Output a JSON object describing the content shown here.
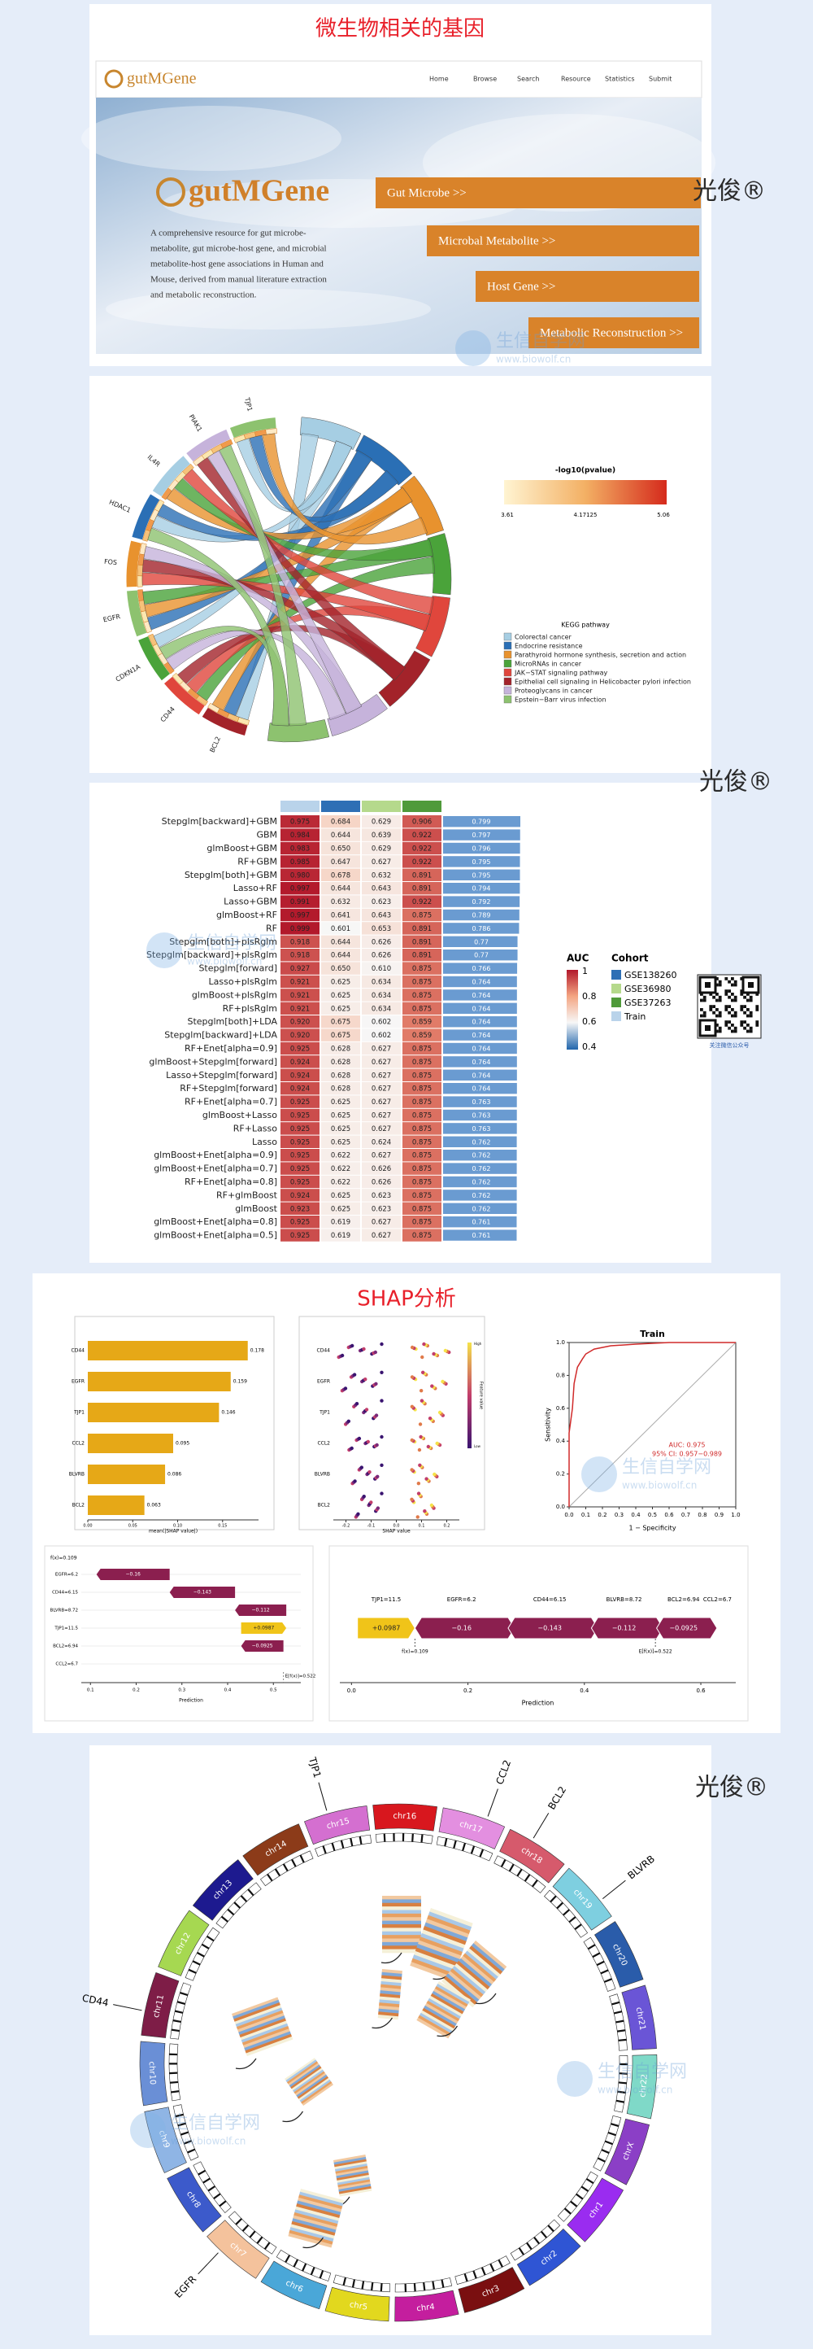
{
  "watermark": "光俊®",
  "site_watermark": {
    "name": "生信自学网",
    "url": "www.biowolf.cn"
  },
  "gutmgene": {
    "title": "微生物相关的基因",
    "logo": "gutMGene",
    "nav": [
      "Home",
      "Browse",
      "Search",
      "Resource",
      "Statistics",
      "Submit"
    ],
    "brand": "gutMGene",
    "description": [
      "A comprehensive resource for gut microbe-",
      "metabolite, gut microbe-host gene, and microbial",
      "metabolite-host gene associations in Human and",
      "Mouse, derived from manual literature extraction",
      "and metabolic reconstruction."
    ],
    "buttons": [
      "Gut Microbe >>",
      "Microbal Metabolite >>",
      "Host Gene >>",
      "Metabolic Reconstruction >>"
    ]
  },
  "chord": {
    "genes": [
      "BCL2",
      "CD44",
      "CDKN1A",
      "EGFR",
      "FOS",
      "HDAC1",
      "IL4R",
      "PIAK1",
      "TJP1"
    ],
    "colorbar": {
      "title": "-log10(pvalue)",
      "ticks": [
        "3.61",
        "4.17125",
        "5.06"
      ]
    },
    "kegg": {
      "title": "KEGG pathway",
      "items": [
        {
          "name": "Colorectal cancer",
          "color": "#a6cee3"
        },
        {
          "name": "Endocrine resistance",
          "color": "#2a6fb5"
        },
        {
          "name": "Parathyroid hormone synthesis, secretion and action",
          "color": "#e8922e"
        },
        {
          "name": "MicroRNAs in cancer",
          "color": "#4aa33a"
        },
        {
          "name": "JAK−STAT signaling pathway",
          "color": "#e0463c"
        },
        {
          "name": "Epithelial cell signaling in Helicobacter pylori infection",
          "color": "#a3232a"
        },
        {
          "name": "Proteoglycans in cancer",
          "color": "#c6b3db"
        },
        {
          "name": "Epstein−Barr virus infection",
          "color": "#8dc26f"
        }
      ]
    }
  },
  "heatmap": {
    "column_colors": [
      "#b9d3ea",
      "#2e6fb5",
      "#b5d98c",
      "#4f9a3a"
    ],
    "models": [
      "Stepglm[backward]+GBM",
      "GBM",
      "glmBoost+GBM",
      "RF+GBM",
      "Stepglm[both]+GBM",
      "Lasso+RF",
      "Lasso+GBM",
      "glmBoost+RF",
      "RF",
      "Stepglm[both]+plsRglm",
      "Stepglm[backward]+plsRglm",
      "Stepglm[forward]",
      "Lasso+plsRglm",
      "glmBoost+plsRglm",
      "RF+plsRglm",
      "Stepglm[both]+LDA",
      "Stepglm[backward]+LDA",
      "RF+Enet[alpha=0.9]",
      "glmBoost+Stepglm[forward]",
      "Lasso+Stepglm[forward]",
      "RF+Stepglm[forward]",
      "RF+Enet[alpha=0.7]",
      "glmBoost+Lasso",
      "RF+Lasso",
      "Lasso",
      "glmBoost+Enet[alpha=0.9]",
      "glmBoost+Enet[alpha=0.7]",
      "RF+Enet[alpha=0.8]",
      "RF+glmBoost",
      "glmBoost",
      "glmBoost+Enet[alpha=0.8]",
      "glmBoost+Enet[alpha=0.5]"
    ],
    "values": [
      [
        "0.975",
        "0.684",
        "0.629",
        "0.906"
      ],
      [
        "0.984",
        "0.644",
        "0.639",
        "0.922"
      ],
      [
        "0.983",
        "0.650",
        "0.629",
        "0.922"
      ],
      [
        "0.985",
        "0.647",
        "0.627",
        "0.922"
      ],
      [
        "0.980",
        "0.678",
        "0.632",
        "0.891"
      ],
      [
        "0.997",
        "0.644",
        "0.643",
        "0.891"
      ],
      [
        "0.991",
        "0.632",
        "0.623",
        "0.922"
      ],
      [
        "0.997",
        "0.641",
        "0.643",
        "0.875"
      ],
      [
        "0.999",
        "0.601",
        "0.653",
        "0.891"
      ],
      [
        "0.918",
        "0.644",
        "0.626",
        "0.891"
      ],
      [
        "0.918",
        "0.644",
        "0.626",
        "0.891"
      ],
      [
        "0.927",
        "0.650",
        "0.610",
        "0.875"
      ],
      [
        "0.921",
        "0.625",
        "0.634",
        "0.875"
      ],
      [
        "0.921",
        "0.625",
        "0.634",
        "0.875"
      ],
      [
        "0.921",
        "0.625",
        "0.634",
        "0.875"
      ],
      [
        "0.920",
        "0.675",
        "0.602",
        "0.859"
      ],
      [
        "0.920",
        "0.675",
        "0.602",
        "0.859"
      ],
      [
        "0.925",
        "0.628",
        "0.627",
        "0.875"
      ],
      [
        "0.924",
        "0.628",
        "0.627",
        "0.875"
      ],
      [
        "0.924",
        "0.628",
        "0.627",
        "0.875"
      ],
      [
        "0.924",
        "0.628",
        "0.627",
        "0.875"
      ],
      [
        "0.925",
        "0.625",
        "0.627",
        "0.875"
      ],
      [
        "0.925",
        "0.625",
        "0.627",
        "0.875"
      ],
      [
        "0.925",
        "0.625",
        "0.627",
        "0.875"
      ],
      [
        "0.925",
        "0.625",
        "0.624",
        "0.875"
      ],
      [
        "0.925",
        "0.622",
        "0.627",
        "0.875"
      ],
      [
        "0.925",
        "0.622",
        "0.626",
        "0.875"
      ],
      [
        "0.925",
        "0.622",
        "0.626",
        "0.875"
      ],
      [
        "0.924",
        "0.625",
        "0.623",
        "0.875"
      ],
      [
        "0.923",
        "0.625",
        "0.623",
        "0.875"
      ],
      [
        "0.925",
        "0.619",
        "0.627",
        "0.875"
      ],
      [
        "0.925",
        "0.619",
        "0.627",
        "0.875"
      ]
    ],
    "means": [
      "0.799",
      "0.797",
      "0.796",
      "0.795",
      "0.795",
      "0.794",
      "0.792",
      "0.789",
      "0.786",
      "0.77",
      "0.77",
      "0.766",
      "0.764",
      "0.764",
      "0.764",
      "0.764",
      "0.764",
      "0.764",
      "0.764",
      "0.764",
      "0.764",
      "0.763",
      "0.763",
      "0.763",
      "0.762",
      "0.762",
      "0.762",
      "0.762",
      "0.762",
      "0.762",
      "0.761",
      "0.761"
    ],
    "auc_legend": {
      "title": "AUC",
      "ticks": [
        "1",
        "0.8",
        "0.6",
        "0.4"
      ]
    },
    "cohort_legend": {
      "title": "Cohort",
      "items": [
        {
          "name": "GSE138260",
          "color": "#2e6fb5"
        },
        {
          "name": "GSE36980",
          "color": "#b5d98c"
        },
        {
          "name": "GSE37263",
          "color": "#4f9a3a"
        },
        {
          "name": "Train",
          "color": "#b9d3ea"
        }
      ]
    },
    "qr_caption": "关注微信公众号"
  },
  "shap": {
    "title": "SHAP分析",
    "importance": {
      "features": [
        "CD44",
        "EGFR",
        "TJP1",
        "CCL2",
        "BLVRB",
        "BCL2"
      ],
      "values": [
        0.178,
        0.159,
        0.146,
        0.095,
        0.086,
        0.063
      ],
      "color": "#e6a817",
      "xlim": [
        0,
        0.19
      ],
      "xticks": [
        {
          "value": 0,
          "label": "0.00"
        },
        {
          "value": 0.05,
          "label": "0.05"
        },
        {
          "value": 0.1,
          "label": "0.10"
        },
        {
          "value": 0.15,
          "label": "0.15"
        }
      ],
      "xlabel": "mean(|SHAP value|)"
    },
    "beeswarm": {
      "xlim": [
        -0.25,
        0.25
      ],
      "xticks": [
        {
          "value": -0.2,
          "label": "-0.2"
        },
        {
          "value": -0.1,
          "label": "-0.1"
        },
        {
          "value": 0,
          "label": "0.0"
        },
        0.1,
        0.2
      ],
      "xlabel": "SHAP value",
      "colorbar": {
        "title": "Feature value",
        "high": "High",
        "low": "Low"
      }
    },
    "roc": {
      "title": "Train",
      "x": [
        0,
        0,
        0.02,
        0.03,
        0.05,
        0.08,
        0.1,
        0.15,
        0.25,
        0.4,
        0.6,
        1
      ],
      "y": [
        0,
        0.45,
        0.6,
        0.75,
        0.85,
        0.9,
        0.93,
        0.96,
        0.98,
        0.99,
        1,
        1
      ],
      "color": "#d02a2a",
      "xlim": [
        0,
        1
      ],
      "ylim": [
        0,
        1
      ],
      "xticks": [
        {
          "value": 0,
          "label": "0.0"
        },
        0.1,
        0.2,
        0.3,
        0.4,
        0.5,
        0.6,
        0.7,
        0.8,
        0.9,
        {
          "value": 1,
          "label": "1.0"
        }
      ],
      "yticks": [
        {
          "value": 0,
          "label": "0.0"
        },
        0.2,
        0.4,
        0.6,
        0.8,
        {
          "value": 1,
          "label": "1.0"
        }
      ],
      "auc": "AUC: 0.975",
      "ci": "95% CI: 0.957−0.989",
      "xlabel": "1 − Specificity",
      "ylabel": "Sensitivity"
    },
    "contributions": {
      "features": [
        "EGFR=6.2",
        "CD44=6.15",
        "BLVRB=8.72",
        "TJP1=11.5",
        "BCL2=6.94",
        "CCL2=6.7"
      ],
      "values": [
        -0.16,
        -0.143,
        -0.112,
        0.0987,
        -0.0925,
        null
      ],
      "value_labels": [
        "−0.16",
        "−0.143",
        "−0.112",
        "+0.0987",
        "−0.0925",
        null
      ],
      "positive_color": "#f0c419",
      "negative_color": "#8b1f4f",
      "base": {
        "value": 0.522,
        "label": "E[f(x)]=0.522"
      },
      "output": {
        "value": 0.109,
        "label": "f(x)=0.109"
      },
      "waterfall_xlim": [
        0.08,
        0.56
      ],
      "waterfall_xticks": [
        0.1,
        0.2,
        0.3,
        0.4,
        0.5
      ],
      "force_xlim": [
        -0.02,
        0.66
      ],
      "force_xticks": [
        {
          "value": 0,
          "label": "0.0"
        },
        0.2,
        0.4,
        0.6
      ],
      "xlabel": "Prediction"
    }
  },
  "circos": {
    "chromosomes": [
      {
        "name": "chr15",
        "color": "#d46fd0"
      },
      {
        "name": "chr16",
        "color": "#d8171e"
      },
      {
        "name": "chr17",
        "color": "#e38fe0"
      },
      {
        "name": "chr18",
        "color": "#d65a6c"
      },
      {
        "name": "chr19",
        "color": "#7ecfe0"
      },
      {
        "name": "chr20",
        "color": "#2a5caa"
      },
      {
        "name": "chr21",
        "color": "#6a55d6"
      },
      {
        "name": "chr22",
        "color": "#7fd9c8"
      },
      {
        "name": "chrX",
        "color": "#8b3fc6"
      },
      {
        "name": "chr1",
        "color": "#9a2cf0"
      },
      {
        "name": "chr2",
        "color": "#2f55d4"
      },
      {
        "name": "chr3",
        "color": "#7a0f10"
      },
      {
        "name": "chr4",
        "color": "#c41e9e"
      },
      {
        "name": "chr5",
        "color": "#e2d81e"
      },
      {
        "name": "chr6",
        "color": "#4aa7d8"
      },
      {
        "name": "chr7",
        "color": "#f4c29c"
      },
      {
        "name": "chr8",
        "color": "#3c5acb"
      },
      {
        "name": "chr9",
        "color": "#8fb5e5"
      },
      {
        "name": "chr10",
        "color": "#6a8fd6"
      },
      {
        "name": "chr11",
        "color": "#7e1d47"
      },
      {
        "name": "chr12",
        "color": "#a6d851"
      },
      {
        "name": "chr13",
        "color": "#1d1a8f"
      },
      {
        "name": "chr14",
        "color": "#8c3b19"
      }
    ],
    "genes": [
      {
        "name": "TJP1",
        "chromosome": "chr15"
      },
      {
        "name": "CCL2",
        "chromosome": "chr17"
      },
      {
        "name": "BCL2",
        "chromosome": "chr18"
      },
      {
        "name": "BLVRB",
        "chromosome": "chr19"
      },
      {
        "name": "CD44",
        "chromosome": "chr11"
      },
      {
        "name": "EGFR",
        "chromosome": "chr7"
      }
    ]
  }
}
